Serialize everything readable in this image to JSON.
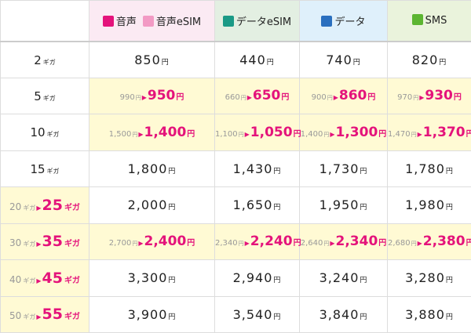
{
  "unit_yen": "円",
  "unit_giga": "ギガ",
  "colors": {
    "accent": "#e4137b",
    "promo_bg": "#fffad4"
  },
  "headers": [
    {
      "labels": [
        "音声",
        "音声eSIM"
      ],
      "icons": [
        "voice-icon",
        "voice-esim-icon"
      ],
      "icon_colors": [
        "#e4137b",
        "#f29ac4"
      ]
    },
    {
      "labels": [
        "データeSIM"
      ],
      "icons": [
        "data-esim-icon"
      ],
      "icon_colors": [
        "#1a9a86"
      ]
    },
    {
      "labels": [
        "データ"
      ],
      "icons": [
        "data-icon"
      ],
      "icon_colors": [
        "#2a6fbf"
      ]
    },
    {
      "labels": [
        "SMS"
      ],
      "icons": [
        "sms-icon"
      ],
      "icon_colors": [
        "#5cb531"
      ]
    }
  ],
  "rows": [
    {
      "size": "2",
      "cells": [
        {
          "price": "850"
        },
        {
          "price": "440"
        },
        {
          "price": "740"
        },
        {
          "price": "820"
        }
      ]
    },
    {
      "size": "5",
      "promo": true,
      "cells": [
        {
          "old": "990",
          "new": "950"
        },
        {
          "old": "660",
          "new": "650"
        },
        {
          "old": "900",
          "new": "860"
        },
        {
          "old": "970",
          "new": "930"
        }
      ]
    },
    {
      "size": "10",
      "promo": true,
      "cells": [
        {
          "old": "1,500",
          "new": "1,400"
        },
        {
          "old": "1,100",
          "new": "1,050"
        },
        {
          "old": "1,400",
          "new": "1,300"
        },
        {
          "old": "1,470",
          "new": "1,370"
        }
      ]
    },
    {
      "size": "15",
      "cells": [
        {
          "price": "1,800"
        },
        {
          "price": "1,430"
        },
        {
          "price": "1,730"
        },
        {
          "price": "1,780"
        }
      ]
    },
    {
      "old_size": "20",
      "size": "25",
      "cells": [
        {
          "price": "2,000"
        },
        {
          "price": "1,650"
        },
        {
          "price": "1,950"
        },
        {
          "price": "1,980"
        }
      ]
    },
    {
      "old_size": "30",
      "size": "35",
      "promo": true,
      "cells": [
        {
          "old": "2,700",
          "new": "2,400"
        },
        {
          "old": "2,340",
          "new": "2,240"
        },
        {
          "old": "2,640",
          "new": "2,340"
        },
        {
          "old": "2,680",
          "new": "2,380"
        }
      ]
    },
    {
      "old_size": "40",
      "size": "45",
      "cells": [
        {
          "price": "3,300"
        },
        {
          "price": "2,940"
        },
        {
          "price": "3,240"
        },
        {
          "price": "3,280"
        }
      ]
    },
    {
      "old_size": "50",
      "size": "55",
      "cells": [
        {
          "price": "3,900"
        },
        {
          "price": "3,540"
        },
        {
          "price": "3,840"
        },
        {
          "price": "3,880"
        }
      ]
    }
  ]
}
